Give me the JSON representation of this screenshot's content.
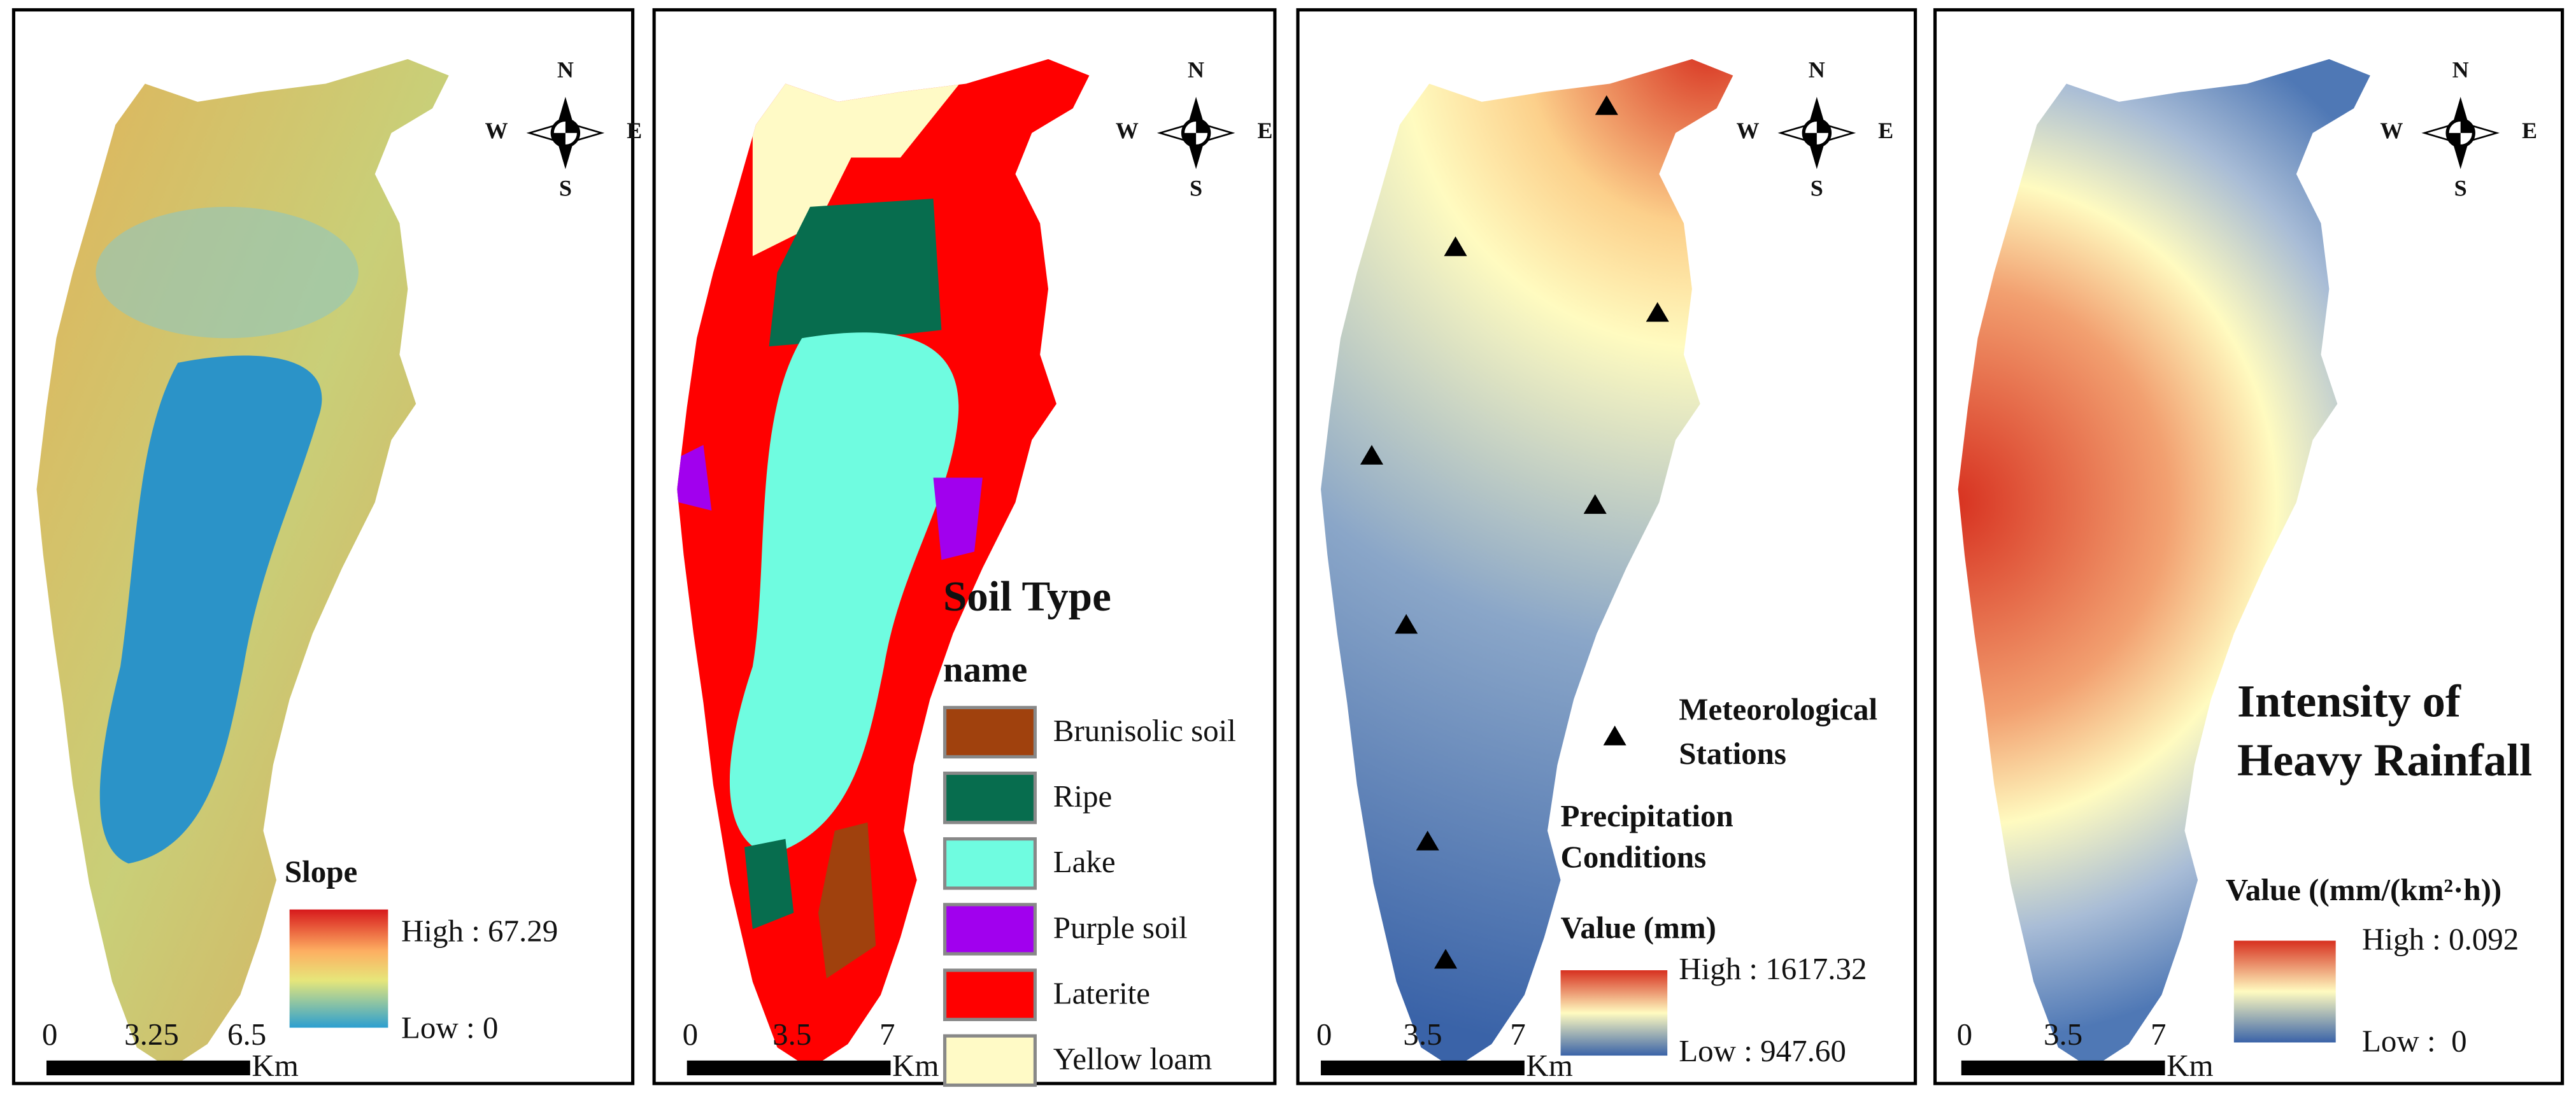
{
  "compass": {
    "n": "N",
    "e": "E",
    "s": "S",
    "w": "W"
  },
  "panels": [
    {
      "legend": {
        "title": "Slope",
        "high": "High : 67.29",
        "low": "Low : 0"
      },
      "scale": {
        "ticks": [
          "0",
          "3.25",
          "6.5"
        ],
        "unit": "Km"
      }
    },
    {
      "legend": {
        "title": "Soil Type",
        "subtitle": "name",
        "items": [
          {
            "name": "Brunisolic soil",
            "color": "#a0410d"
          },
          {
            "name": "Ripe",
            "color": "#076d4e"
          },
          {
            "name": "Lake",
            "color": "#6ffce0"
          },
          {
            "name": "Purple soil",
            "color": "#a100ee"
          },
          {
            "name": "Laterite",
            "color": "#ff0000"
          },
          {
            "name": "Yellow loam",
            "color": "#fffac6"
          }
        ]
      },
      "scale": {
        "ticks": [
          "0",
          "3.5",
          "7"
        ],
        "unit": "Km"
      }
    },
    {
      "stations_label": [
        "Meteorological",
        "Stations"
      ],
      "legend": {
        "title": [
          "Precipitation",
          "Conditions"
        ],
        "subtitle": "Value (mm)",
        "high": "High : 1617.32",
        "low": "Low : 947.60"
      },
      "scale": {
        "ticks": [
          "0",
          "3.5",
          "7"
        ],
        "unit": "Km"
      }
    },
    {
      "legend": {
        "title": [
          "Intensity of",
          "Heavy Rainfall"
        ],
        "subtitle": "Value ((mm/(km²·h))",
        "high": "High : 0.092",
        "low": "Low :  0"
      },
      "scale": {
        "ticks": [
          "0",
          "3.5",
          "7"
        ],
        "unit": "Km"
      }
    }
  ]
}
